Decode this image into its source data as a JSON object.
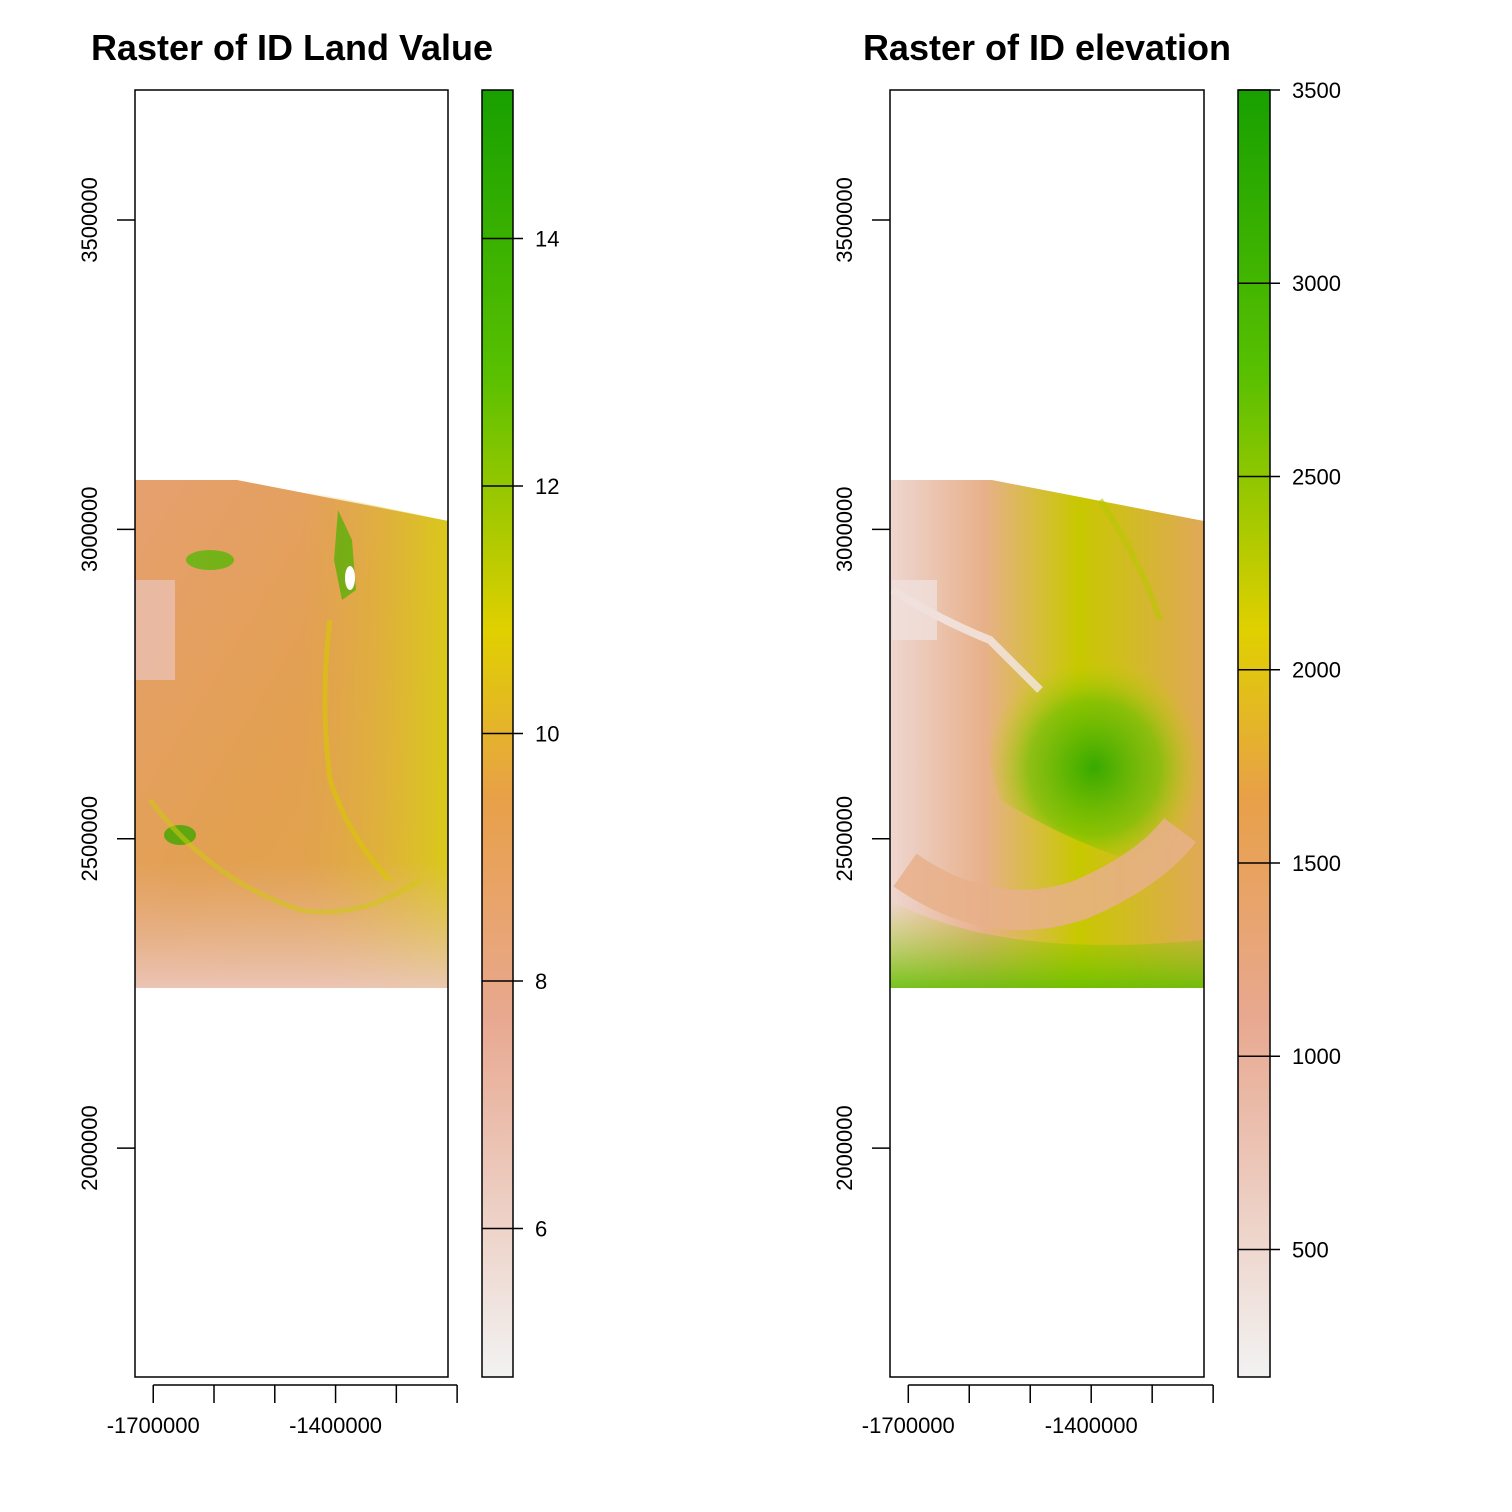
{
  "chart_data": [
    {
      "type": "heatmap",
      "title": "Raster of ID Land Value",
      "xlabel": "",
      "ylabel": "",
      "xlim": [
        -1730000,
        -1215000
      ],
      "ylim": [
        1630000,
        3710000
      ],
      "x_ticks": [
        -1700000,
        -1600000,
        -1500000,
        -1400000,
        -1300000,
        -1200000
      ],
      "x_tick_labels": [
        "-1700000",
        "-1400000"
      ],
      "y_ticks": [
        2000000,
        2500000,
        3000000,
        3500000
      ],
      "y_tick_labels": [
        "2000000",
        "2500000",
        "3000000",
        "3500000"
      ],
      "raster_extent": {
        "x": [
          -1715000,
          -1200000
        ],
        "y": [
          2210000,
          3060000
        ]
      },
      "colorbar": {
        "range": [
          4.8,
          15.2
        ],
        "ticks": [
          6,
          8,
          10,
          12,
          14
        ],
        "tick_labels": [
          "6",
          "8",
          "10",
          "12",
          "14"
        ]
      },
      "colors": {
        "low": "#f2f2f2",
        "mid_low": "#ecb176",
        "mid": "#e6e600",
        "high": "#00a600"
      }
    },
    {
      "type": "heatmap",
      "title": "Raster of ID elevation",
      "xlabel": "",
      "ylabel": "",
      "xlim": [
        -1730000,
        -1215000
      ],
      "ylim": [
        1630000,
        3710000
      ],
      "x_ticks": [
        -1700000,
        -1600000,
        -1500000,
        -1400000,
        -1300000,
        -1200000
      ],
      "x_tick_labels": [
        "-1700000",
        "-1400000"
      ],
      "y_ticks": [
        2000000,
        2500000,
        3000000,
        3500000
      ],
      "y_tick_labels": [
        "2000000",
        "2500000",
        "3000000",
        "3500000"
      ],
      "raster_extent": {
        "x": [
          -1715000,
          -1200000
        ],
        "y": [
          2210000,
          3060000
        ]
      },
      "colorbar": {
        "range": [
          170,
          3500
        ],
        "ticks": [
          500,
          1000,
          1500,
          2000,
          2500,
          3000,
          3500
        ],
        "tick_labels": [
          "500",
          "1000",
          "1500",
          "2000",
          "2500",
          "3000",
          "3500"
        ]
      },
      "colors": {
        "low": "#f2f2f2",
        "mid_low": "#ecb176",
        "mid": "#e6e600",
        "high": "#00a600"
      }
    }
  ]
}
